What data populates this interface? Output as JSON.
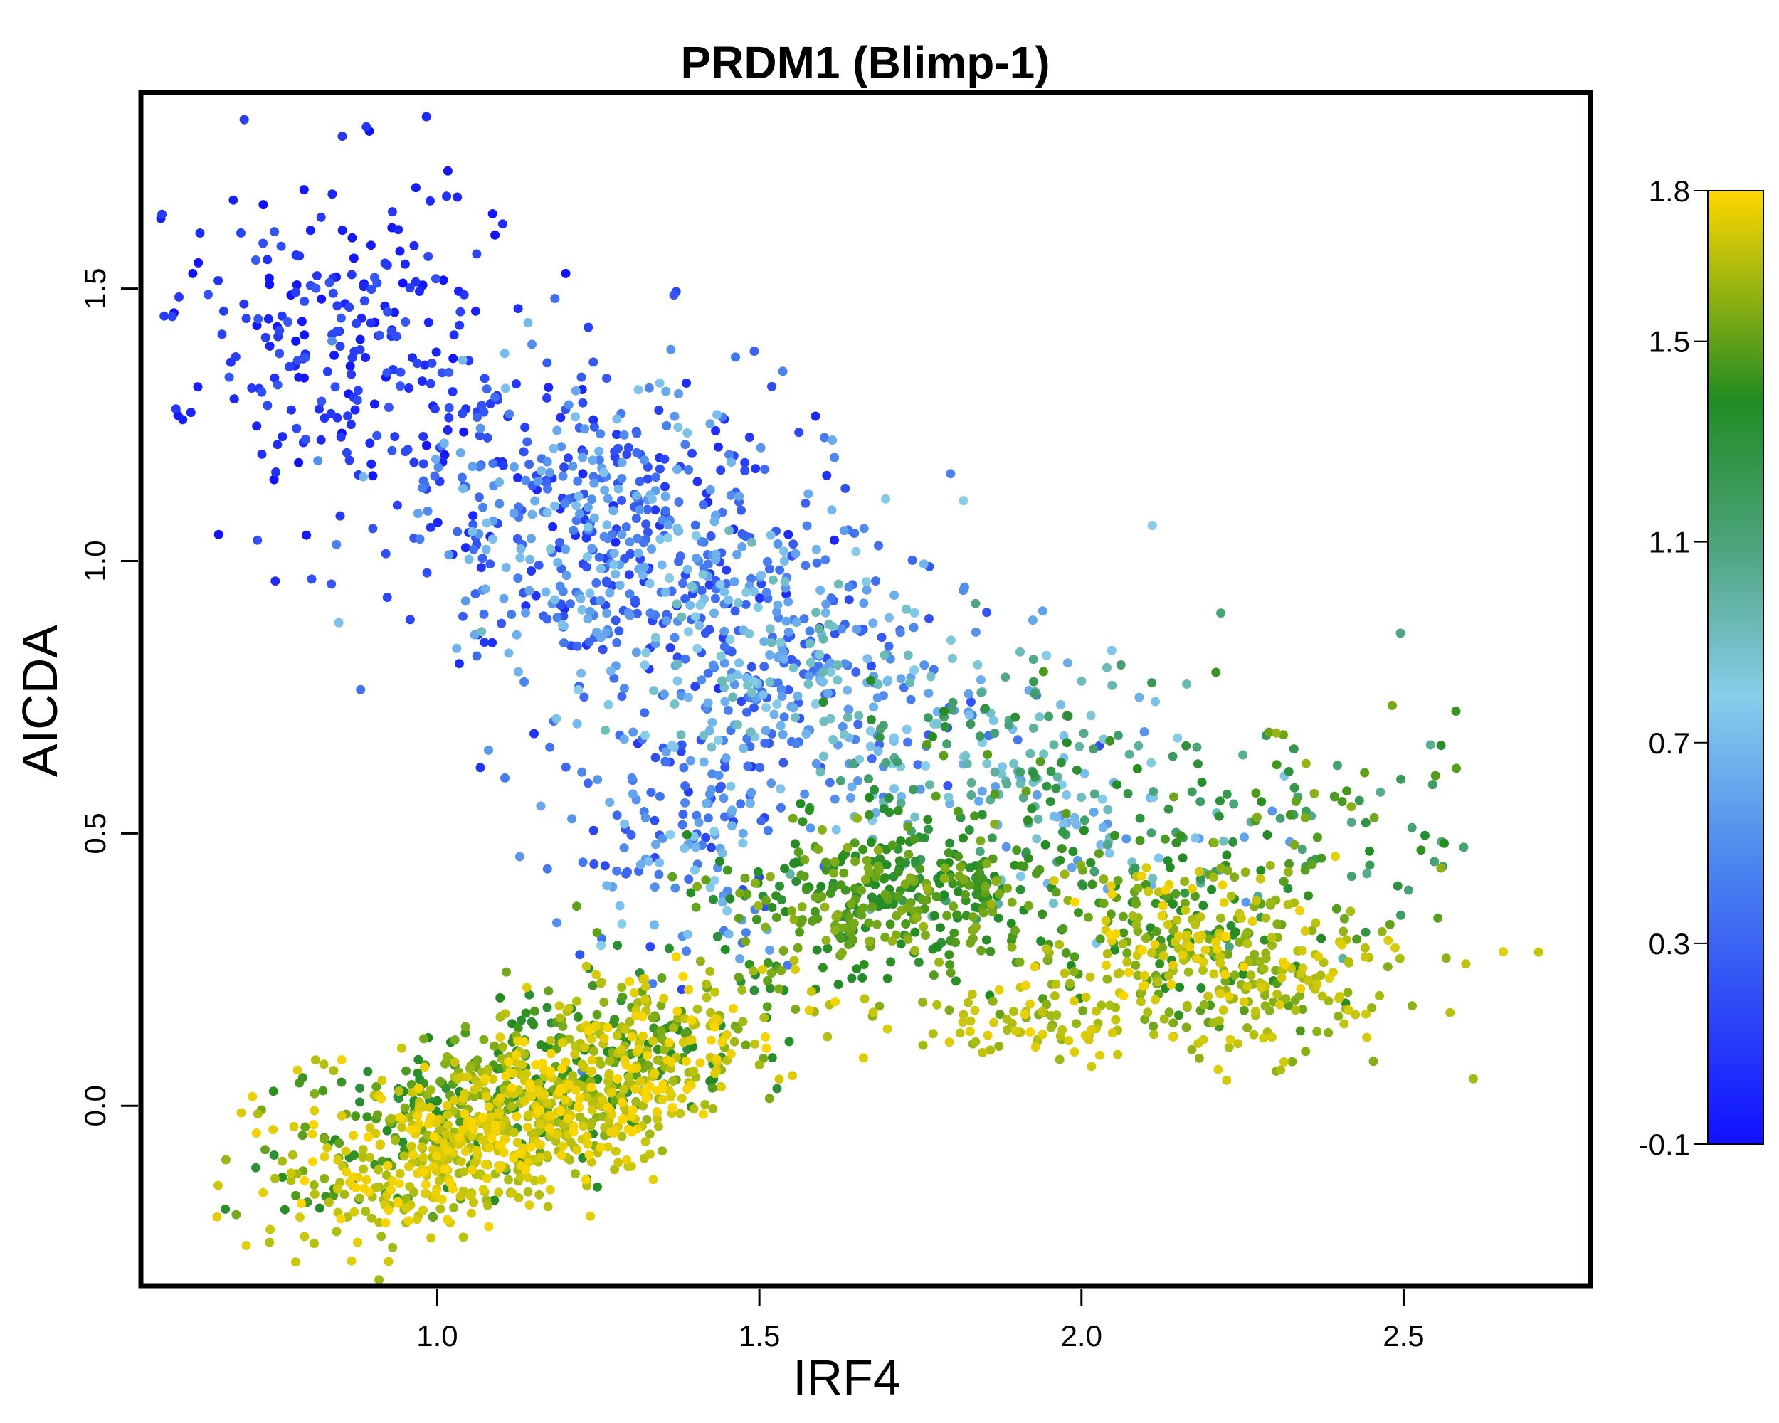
{
  "chart_data": {
    "type": "scatter",
    "title": "PRDM1 (Blimp-1)",
    "xlabel": "IRF4",
    "ylabel": "AICDA",
    "xlim": [
      0.54,
      2.79
    ],
    "ylim": [
      -0.33,
      1.86
    ],
    "xticks": [
      "1.0",
      "1.5",
      "2.0",
      "2.5"
    ],
    "xtick_values": [
      1.0,
      1.5,
      2.0,
      2.5
    ],
    "yticks": [
      "0.0",
      "0.5",
      "1.0",
      "1.5"
    ],
    "ytick_values": [
      0.0,
      0.5,
      1.0,
      1.5
    ],
    "color_variable_range": [
      -0.1,
      1.8
    ],
    "colorbar_ticks": [
      "1.8",
      "1.5",
      "1.1",
      "0.7",
      "0.3",
      "-0.1"
    ],
    "colorbar_tick_values": [
      1.8,
      1.5,
      1.1,
      0.7,
      0.3,
      -0.1
    ],
    "colors": {
      "low": "#1a1aff",
      "mid_low": "#4d88ee",
      "mid": "#87ceeb",
      "mid_high": "#4aa37a",
      "high": "#228b22",
      "max": "#ffd700"
    },
    "grid": false,
    "clusters": [
      {
        "cx": 0.85,
        "cy": 1.4,
        "sx": 0.14,
        "sy": 0.16,
        "rot": 0,
        "n": 260,
        "c": [
          -0.1,
          0.25
        ]
      },
      {
        "cx": 1.25,
        "cy": 1.08,
        "sx": 0.17,
        "sy": 0.15,
        "rot": -0.5,
        "n": 480,
        "c": [
          0.0,
          0.75
        ]
      },
      {
        "cx": 1.55,
        "cy": 0.82,
        "sx": 0.17,
        "sy": 0.13,
        "rot": -0.45,
        "n": 420,
        "c": [
          0.2,
          0.95
        ]
      },
      {
        "cx": 1.38,
        "cy": 0.5,
        "sx": 0.08,
        "sy": 0.14,
        "rot": 0,
        "n": 150,
        "c": [
          0.1,
          0.8
        ]
      },
      {
        "cx": 1.9,
        "cy": 0.58,
        "sx": 0.17,
        "sy": 0.12,
        "rot": -0.15,
        "n": 260,
        "c": [
          0.5,
          1.5
        ]
      },
      {
        "cx": 2.35,
        "cy": 0.52,
        "sx": 0.13,
        "sy": 0.11,
        "rot": 0,
        "n": 110,
        "c": [
          1.0,
          1.6
        ]
      },
      {
        "cx": 1.15,
        "cy": 0.05,
        "sx": 0.22,
        "sy": 0.07,
        "rot": 0.42,
        "n": 700,
        "c": [
          1.3,
          1.8
        ]
      },
      {
        "cx": 1.12,
        "cy": -0.06,
        "sx": 0.18,
        "sy": 0.06,
        "rot": 0.42,
        "n": 500,
        "c": [
          1.6,
          1.8
        ]
      },
      {
        "cx": 1.72,
        "cy": 0.38,
        "sx": 0.13,
        "sy": 0.07,
        "rot": 0,
        "n": 380,
        "c": [
          1.3,
          1.6
        ]
      },
      {
        "cx": 2.15,
        "cy": 0.3,
        "sx": 0.12,
        "sy": 0.08,
        "rot": 0,
        "n": 260,
        "c": [
          1.35,
          1.8
        ]
      },
      {
        "cx": 2.3,
        "cy": 0.22,
        "sx": 0.14,
        "sy": 0.07,
        "rot": 0,
        "n": 140,
        "c": [
          1.55,
          1.75
        ]
      },
      {
        "cx": 1.95,
        "cy": 0.15,
        "sx": 0.1,
        "sy": 0.04,
        "rot": 0,
        "n": 80,
        "c": [
          1.55,
          1.75
        ]
      }
    ]
  }
}
